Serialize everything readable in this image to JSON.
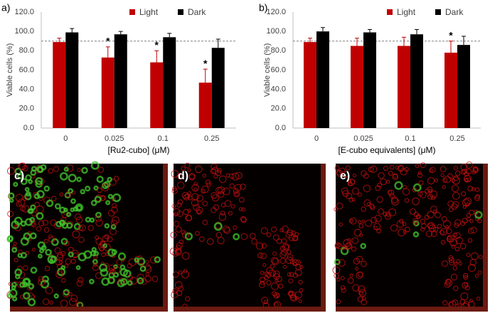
{
  "chart_data": [
    {
      "type": "bar",
      "panel": "a)",
      "y_label": "Viable cells (%)",
      "x_label": "[Ru2-cubo] (μM)",
      "categories": [
        "0",
        "0.025",
        "0.1",
        "0.25"
      ],
      "series": [
        {
          "name": "Light",
          "color": "#c00000",
          "values": [
            89,
            73,
            68,
            47
          ],
          "errors": [
            4,
            11,
            12,
            14
          ],
          "significance": [
            null,
            "*",
            "*",
            "*"
          ]
        },
        {
          "name": "Dark",
          "color": "#000000",
          "values": [
            99,
            97,
            94,
            83
          ],
          "errors": [
            4,
            3,
            4,
            9
          ]
        }
      ],
      "ylim": [
        0,
        120
      ],
      "yticks": [
        {
          "value": 0,
          "label": "0.0"
        },
        {
          "value": 20,
          "label": "20.0"
        },
        {
          "value": 40,
          "label": "40.0"
        },
        {
          "value": 60,
          "label": "60.0"
        },
        {
          "value": 80,
          "label": "80.0"
        },
        {
          "value": 100,
          "label": "100.0"
        },
        {
          "value": 120,
          "label": "120.0"
        }
      ],
      "reference_line": 90,
      "legend": "top"
    },
    {
      "type": "bar",
      "panel": "b)",
      "y_label": "Viable cells (%)",
      "x_label": "[E-cubo equivalents] (μM)",
      "categories": [
        "0",
        "0.025",
        "0.1",
        "0.25"
      ],
      "series": [
        {
          "name": "Light",
          "color": "#c00000",
          "values": [
            89,
            85,
            85,
            78
          ],
          "errors": [
            4,
            8,
            9,
            12
          ],
          "significance": [
            null,
            null,
            null,
            "*"
          ]
        },
        {
          "name": "Dark",
          "color": "#000000",
          "values": [
            100,
            99,
            97,
            86
          ],
          "errors": [
            4,
            3,
            5,
            9
          ]
        }
      ],
      "ylim": [
        0,
        120
      ],
      "yticks": [
        {
          "value": 0,
          "label": "0.0"
        },
        {
          "value": 20,
          "label": "20.0"
        },
        {
          "value": 40,
          "label": "40.0"
        },
        {
          "value": 60,
          "label": "60.0"
        },
        {
          "value": 80,
          "label": "80.0"
        },
        {
          "value": 100,
          "label": "100.0"
        },
        {
          "value": 120,
          "label": "120.0"
        }
      ],
      "reference_line": 90,
      "legend": "top"
    }
  ],
  "images": [
    {
      "label": "c)"
    },
    {
      "label": "d)"
    },
    {
      "label": "e)"
    }
  ]
}
